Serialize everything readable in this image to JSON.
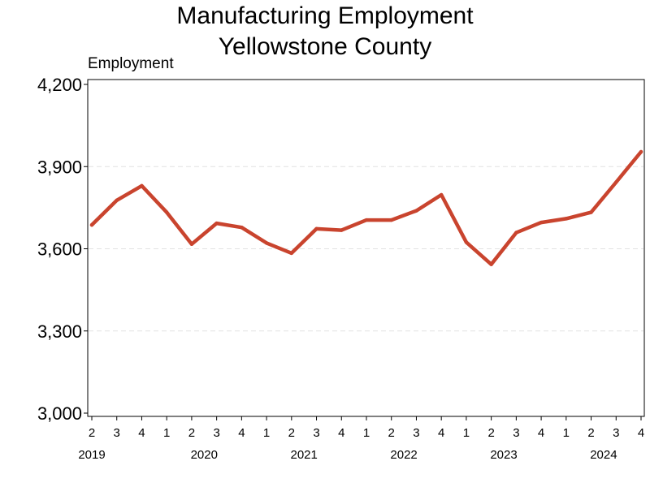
{
  "chart_data": {
    "type": "line",
    "title": [
      "Manufacturing Employment",
      "Yellowstone County"
    ],
    "ylabel": "Employment",
    "xlabel": "",
    "ylim": [
      3000,
      4200
    ],
    "yticks": [
      3000,
      3300,
      3600,
      3900,
      4200
    ],
    "ytick_labels": [
      "3,000",
      "3,300",
      "3,600",
      "3,900",
      "4,200"
    ],
    "grid": "horizontal dashed",
    "legend": "none",
    "line_color": "#c9442e",
    "x": [
      "2019 Q2",
      "2019 Q3",
      "2019 Q4",
      "2020 Q1",
      "2020 Q2",
      "2020 Q3",
      "2020 Q4",
      "2021 Q1",
      "2021 Q2",
      "2021 Q3",
      "2021 Q4",
      "2022 Q1",
      "2022 Q2",
      "2022 Q3",
      "2022 Q4",
      "2023 Q1",
      "2023 Q2",
      "2023 Q3",
      "2023 Q4",
      "2024 Q1",
      "2024 Q2",
      "2024 Q3",
      "2024 Q4"
    ],
    "quarter_labels": [
      "2",
      "3",
      "4",
      "1",
      "2",
      "3",
      "4",
      "1",
      "2",
      "3",
      "4",
      "1",
      "2",
      "3",
      "4",
      "1",
      "2",
      "3",
      "4",
      "1",
      "2",
      "3",
      "4"
    ],
    "year_labels": [
      "2019",
      "2020",
      "2021",
      "2022",
      "2023",
      "2024"
    ],
    "series": [
      {
        "values": [
          3687,
          3777,
          3830,
          3733,
          3617,
          3693,
          3678,
          3621,
          3584,
          3673,
          3668,
          3705,
          3705,
          3739,
          3797,
          3624,
          3543,
          3659,
          3696,
          3710,
          3733,
          3843,
          3954
        ]
      }
    ]
  }
}
